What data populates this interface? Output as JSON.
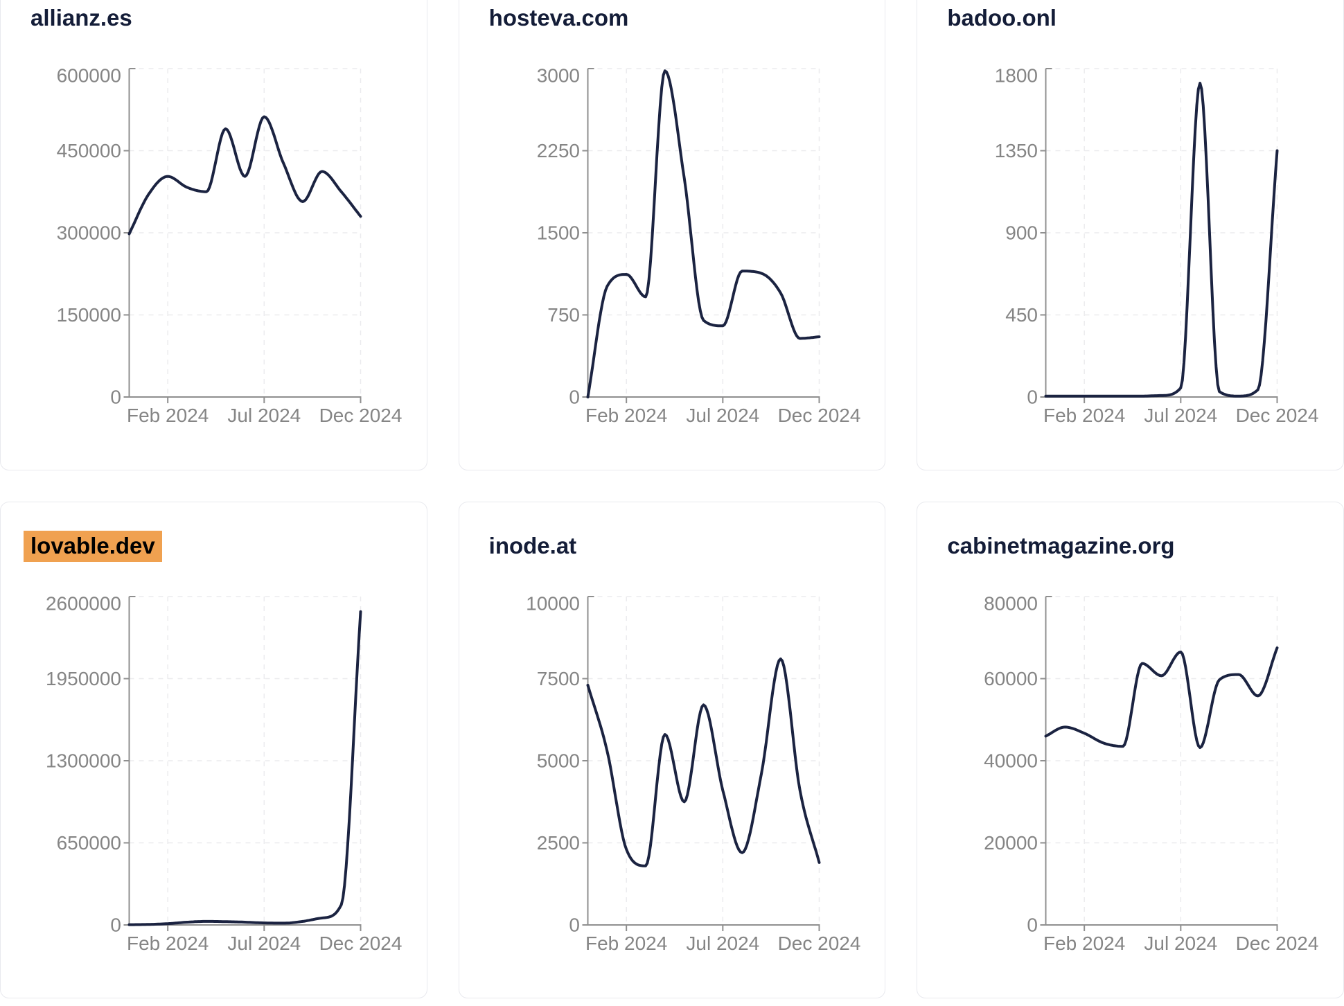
{
  "page": {
    "background": "#ffffff",
    "description_labels": {
      "x_axis_ticks": [
        "Feb 2024",
        "Jul 2024",
        "Dec 2024"
      ]
    }
  },
  "colors": {
    "card_bg": "#ffffff",
    "card_border": "#e8e9ee",
    "title": "#141d38",
    "line": "#1b2341",
    "axis": "#8f8f8f",
    "tick_label": "#858585",
    "gridline": "#ebebee",
    "highlight_bg": "#f0a150",
    "highlight_text": "#000000"
  },
  "cards": [
    {
      "title": "allianz.es",
      "highlighted": false
    },
    {
      "title": "hosteva.com",
      "highlighted": false
    },
    {
      "title": "badoo.onl",
      "highlighted": false
    },
    {
      "title": "lovable.dev",
      "highlighted": true
    },
    {
      "title": "inode.at",
      "highlighted": false
    },
    {
      "title": "cabinetmagazine.org",
      "highlighted": false
    }
  ],
  "chart_data": [
    {
      "type": "line",
      "title": "allianz.es",
      "x": [
        "Dec 2023",
        "Jan 2024",
        "Feb 2024",
        "Mar 2024",
        "Apr 2024",
        "May 2024",
        "Jun 2024",
        "Jul 2024",
        "Aug 2024",
        "Sep 2024",
        "Oct 2024",
        "Nov 2024",
        "Dec 2024"
      ],
      "values": [
        298000,
        370000,
        403000,
        383000,
        375000,
        490000,
        403000,
        512000,
        427000,
        357000,
        412000,
        375000,
        330000
      ],
      "y_ticks": [
        600000,
        450000,
        300000,
        150000,
        0
      ],
      "ylim": [
        0,
        600000
      ],
      "x_tick_labels": [
        "Feb 2024",
        "Jul 2024",
        "Dec 2024"
      ],
      "x_tick_indices": [
        2,
        7,
        12
      ],
      "grid": "dashed",
      "legend": "none"
    },
    {
      "type": "line",
      "title": "hosteva.com",
      "x": [
        "Dec 2023",
        "Jan 2024",
        "Feb 2024",
        "Mar 2024",
        "Apr 2024",
        "May 2024",
        "Jun 2024",
        "Jul 2024",
        "Aug 2024",
        "Sep 2024",
        "Oct 2024",
        "Nov 2024",
        "Dec 2024"
      ],
      "values": [
        0,
        1010,
        1120,
        915,
        2980,
        2000,
        700,
        650,
        1150,
        1130,
        950,
        535,
        550
      ],
      "y_ticks": [
        3000,
        2250,
        1500,
        750,
        0
      ],
      "ylim": [
        0,
        3000
      ],
      "x_tick_labels": [
        "Feb 2024",
        "Jul 2024",
        "Dec 2024"
      ],
      "x_tick_indices": [
        2,
        7,
        12
      ],
      "grid": "dashed",
      "legend": "none"
    },
    {
      "type": "line",
      "title": "badoo.onl",
      "x": [
        "Dec 2023",
        "Jan 2024",
        "Feb 2024",
        "Mar 2024",
        "Apr 2024",
        "May 2024",
        "Jun 2024",
        "Jul 2024",
        "Aug 2024",
        "Sep 2024",
        "Oct 2024",
        "Nov 2024",
        "Dec 2024"
      ],
      "values": [
        5,
        5,
        5,
        5,
        5,
        5,
        8,
        50,
        1720,
        30,
        5,
        40,
        1350
      ],
      "y_ticks": [
        1800,
        1350,
        900,
        450,
        0
      ],
      "ylim": [
        0,
        1800
      ],
      "x_tick_labels": [
        "Feb 2024",
        "Jul 2024",
        "Dec 2024"
      ],
      "x_tick_indices": [
        2,
        7,
        12
      ],
      "grid": "dashed",
      "legend": "none"
    },
    {
      "type": "line",
      "title": "lovable.dev",
      "x": [
        "Dec 2023",
        "Jan 2024",
        "Feb 2024",
        "Mar 2024",
        "Apr 2024",
        "May 2024",
        "Jun 2024",
        "Jul 2024",
        "Aug 2024",
        "Sep 2024",
        "Oct 2024",
        "Nov 2024",
        "Dec 2024"
      ],
      "values": [
        2000,
        4000,
        10000,
        22000,
        28000,
        26000,
        22000,
        16000,
        14000,
        28000,
        55000,
        160000,
        2480000
      ],
      "y_ticks": [
        2600000,
        1950000,
        1300000,
        650000,
        0
      ],
      "ylim": [
        0,
        2600000
      ],
      "x_tick_labels": [
        "Feb 2024",
        "Jul 2024",
        "Dec 2024"
      ],
      "x_tick_indices": [
        2,
        7,
        12
      ],
      "grid": "dashed",
      "legend": "none"
    },
    {
      "type": "line",
      "title": "inode.at",
      "x": [
        "Dec 2023",
        "Jan 2024",
        "Feb 2024",
        "Mar 2024",
        "Apr 2024",
        "May 2024",
        "Jun 2024",
        "Jul 2024",
        "Aug 2024",
        "Sep 2024",
        "Oct 2024",
        "Nov 2024",
        "Dec 2024"
      ],
      "values": [
        7300,
        5300,
        2300,
        1800,
        5800,
        3750,
        6700,
        4100,
        2200,
        4600,
        8100,
        4100,
        1900
      ],
      "y_ticks": [
        10000,
        7500,
        5000,
        2500,
        0
      ],
      "ylim": [
        0,
        10000
      ],
      "x_tick_labels": [
        "Feb 2024",
        "Jul 2024",
        "Dec 2024"
      ],
      "x_tick_indices": [
        2,
        7,
        12
      ],
      "grid": "dashed",
      "legend": "none"
    },
    {
      "type": "line",
      "title": "cabinetmagazine.org",
      "x": [
        "Dec 2023",
        "Jan 2024",
        "Feb 2024",
        "Mar 2024",
        "Apr 2024",
        "May 2024",
        "Jun 2024",
        "Jul 2024",
        "Aug 2024",
        "Sep 2024",
        "Oct 2024",
        "Nov 2024",
        "Dec 2024"
      ],
      "values": [
        46000,
        48200,
        46700,
        44300,
        43500,
        63700,
        60700,
        66500,
        43200,
        59700,
        61000,
        55800,
        67500
      ],
      "y_ticks": [
        80000,
        60000,
        40000,
        20000,
        0
      ],
      "ylim": [
        0,
        80000
      ],
      "x_tick_labels": [
        "Feb 2024",
        "Jul 2024",
        "Dec 2024"
      ],
      "x_tick_indices": [
        2,
        7,
        12
      ],
      "grid": "dashed",
      "legend": "none"
    }
  ]
}
